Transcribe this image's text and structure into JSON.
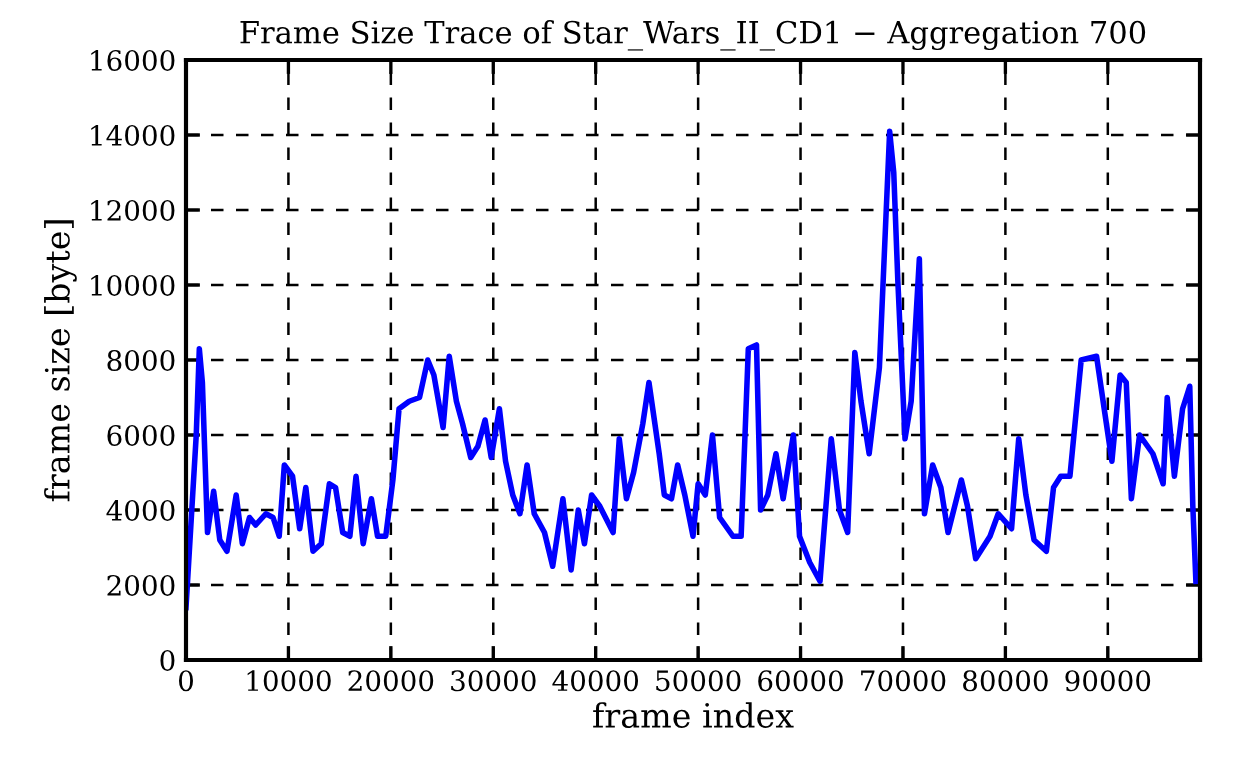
{
  "chart_data": {
    "type": "line",
    "title": "Frame Size Trace of Star_Wars_II_CD1 − Aggregation 700",
    "xlabel": "frame index",
    "ylabel": "frame size [byte]",
    "xlim": [
      0,
      99000
    ],
    "xticks": [
      0,
      10000,
      20000,
      30000,
      40000,
      50000,
      60000,
      70000,
      80000,
      90000
    ],
    "ylim": [
      0,
      16000
    ],
    "yticks": [
      0,
      2000,
      4000,
      6000,
      8000,
      10000,
      12000,
      14000,
      16000
    ],
    "grid": true,
    "legend": false,
    "line_style": "solid",
    "series": [
      {
        "color": "#0000ff",
        "x": [
          0,
          1000,
          1300,
          1600,
          2100,
          2700,
          3300,
          4000,
          4900,
          5500,
          6200,
          6800,
          7800,
          8500,
          9100,
          9600,
          10400,
          11100,
          11700,
          12400,
          13200,
          14000,
          14600,
          15300,
          16000,
          16600,
          17300,
          18100,
          18700,
          19500,
          20200,
          20800,
          21800,
          22800,
          23600,
          24200,
          25100,
          25700,
          26400,
          27000,
          27800,
          28500,
          29200,
          29800,
          30600,
          31200,
          31900,
          32600,
          33300,
          34000,
          35000,
          35800,
          36800,
          37600,
          38300,
          38900,
          39600,
          40400,
          41700,
          42300,
          43000,
          43700,
          44600,
          45200,
          46200,
          46700,
          47400,
          48000,
          48700,
          49500,
          50000,
          50700,
          51400,
          52100,
          53400,
          54200,
          54900,
          55700,
          56100,
          56800,
          57600,
          58300,
          59300,
          59900,
          60900,
          61900,
          63000,
          63800,
          64600,
          65300,
          65900,
          66700,
          67700,
          68700,
          69100,
          69500,
          70200,
          70800,
          71600,
          72100,
          72900,
          73700,
          74400,
          75700,
          76300,
          77100,
          78500,
          79300,
          80600,
          81300,
          82000,
          82800,
          84000,
          84700,
          85400,
          86300,
          87400,
          88900,
          89700,
          90400,
          91200,
          91800,
          92300,
          93100,
          94400,
          95400,
          95800,
          96500,
          97300,
          98000,
          98300,
          98600
        ],
        "values": [
          1400,
          6000,
          8300,
          7400,
          3400,
          4500,
          3200,
          2900,
          4400,
          3100,
          3800,
          3600,
          3900,
          3800,
          3300,
          5200,
          4900,
          3500,
          4600,
          2900,
          3100,
          4700,
          4600,
          3400,
          3300,
          4900,
          3100,
          4300,
          3300,
          3300,
          4800,
          6700,
          6900,
          7000,
          8000,
          7600,
          6200,
          8100,
          6900,
          6300,
          5400,
          5700,
          6400,
          5400,
          6700,
          5300,
          4400,
          3900,
          5200,
          3900,
          3400,
          2500,
          4300,
          2400,
          4000,
          3100,
          4400,
          4100,
          3400,
          5900,
          4300,
          5000,
          6300,
          7400,
          5500,
          4400,
          4300,
          5200,
          4400,
          3300,
          4700,
          4400,
          6000,
          3800,
          3300,
          3300,
          8300,
          8400,
          4000,
          4400,
          5500,
          4300,
          6000,
          3300,
          2600,
          2100,
          5900,
          4000,
          3400,
          8200,
          6900,
          5500,
          7800,
          14100,
          13000,
          10100,
          5900,
          6900,
          10700,
          3900,
          5200,
          4600,
          3400,
          4800,
          4100,
          2700,
          3300,
          3900,
          3500,
          5900,
          4400,
          3200,
          2900,
          4600,
          4900,
          4900,
          8000,
          8100,
          6600,
          5300,
          7600,
          7400,
          4300,
          6000,
          5500,
          4700,
          7000,
          4900,
          6700,
          7300,
          4100,
          2100
        ]
      }
    ]
  }
}
